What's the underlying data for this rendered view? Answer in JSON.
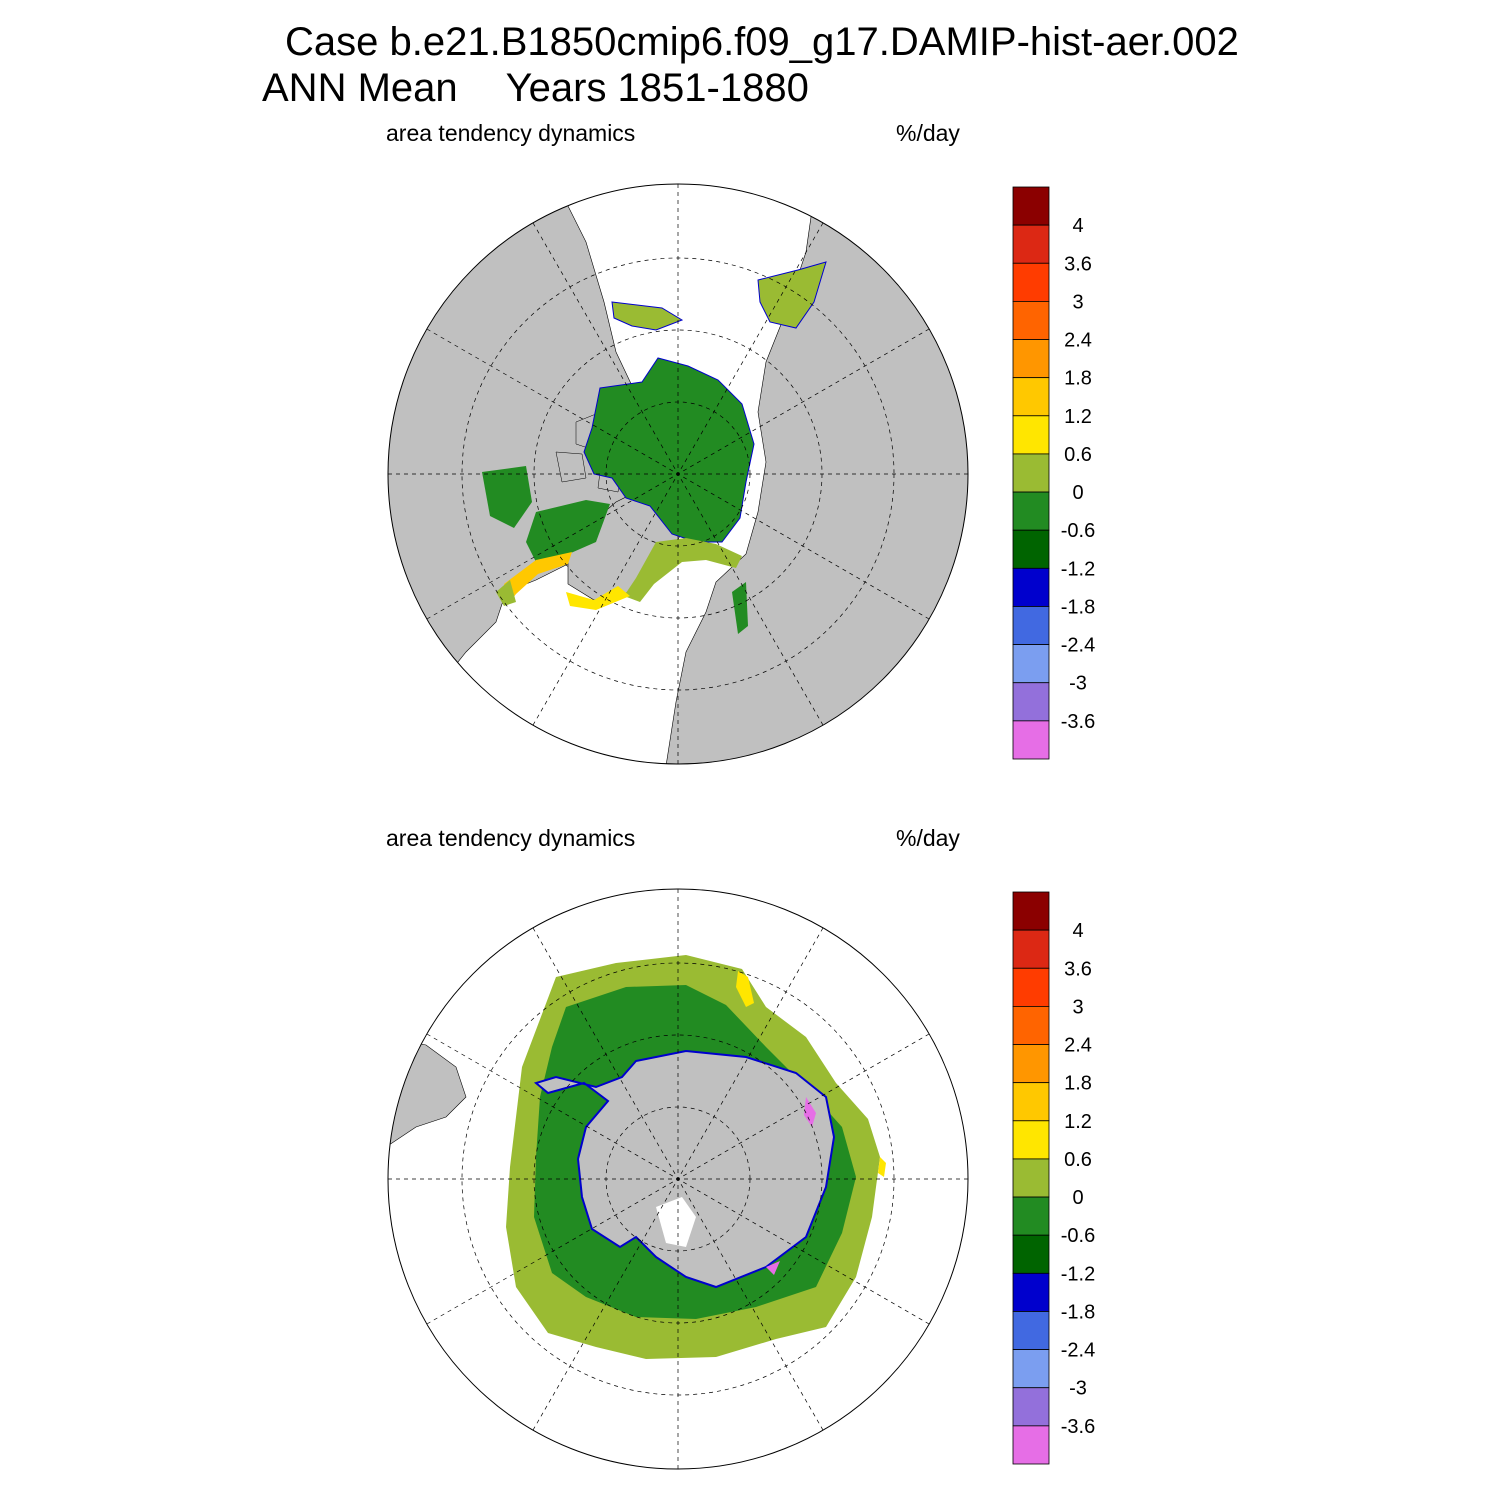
{
  "title": {
    "line1": "Case b.e21.B1850cmip6.f09_g17.DAMIP-hist-aer.002",
    "line2_left": "ANN Mean",
    "line2_right": "Years 1851-1880"
  },
  "panels": [
    {
      "id": "north",
      "left_label": "area tendency dynamics",
      "right_label": "%/day",
      "hemisphere": "Northern Hemisphere polar stereographic"
    },
    {
      "id": "south",
      "left_label": "area tendency dynamics",
      "right_label": "%/day",
      "hemisphere": "Southern Hemisphere polar stereographic"
    }
  ],
  "colorbar": {
    "labels": [
      "4",
      "3.6",
      "3",
      "2.4",
      "1.8",
      "1.2",
      "0.6",
      "0",
      "-0.6",
      "-1.2",
      "-1.8",
      "-2.4",
      "-3",
      "-3.6"
    ],
    "colors_top_to_bottom": [
      "#8b0000",
      "#dc2814",
      "#ff3c00",
      "#ff6400",
      "#ff9600",
      "#ffc800",
      "#ffe600",
      "#9abb33",
      "#228b22",
      "#006400",
      "#0000cd",
      "#4169e1",
      "#7b9ef0",
      "#9370db",
      "#e66ee6"
    ]
  },
  "colors": {
    "land": "#c0c0c0",
    "ocean_no_data": "#ffffff"
  }
}
